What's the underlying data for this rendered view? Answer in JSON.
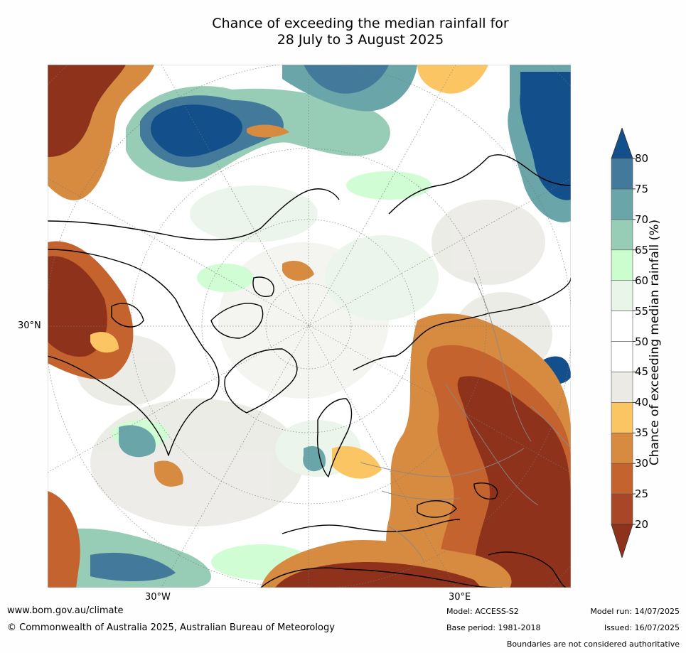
{
  "title": {
    "line1": "Chance of exceeding the median rainfall for",
    "line2": "28 July to 3 August 2025"
  },
  "map": {
    "projection": "north-polar",
    "lat_label": "30°N",
    "lon_labels": [
      "30°W",
      "30°E"
    ]
  },
  "colorbar": {
    "label": "Chance of exceeding median rainfall (%)",
    "ticks": [
      "20",
      "25",
      "30",
      "35",
      "40",
      "45",
      "50",
      "55",
      "60",
      "65",
      "70",
      "75",
      "80"
    ],
    "colors": [
      "#8f321c",
      "#a94627",
      "#c5632e",
      "#d78b40",
      "#fcc563",
      "#ebeae5",
      "#ffffff",
      "#ffffff",
      "#e9f5e9",
      "#ccfdcf",
      "#97cdb6",
      "#6aa6a9",
      "#43799a",
      "#134f8a"
    ],
    "extend": "both"
  },
  "footer": {
    "website": "www.bom.gov.au/climate",
    "copyright": "© Commonwealth of Australia 2025, Australian Bureau of Meteorology",
    "model": "Model: ACCESS-S2",
    "base_period": "Base period: 1981-2018",
    "model_run": "Model run: 14/07/2025",
    "issued": "Issued: 16/07/2025",
    "disclaimer": "Boundaries are not considered authoritative"
  }
}
